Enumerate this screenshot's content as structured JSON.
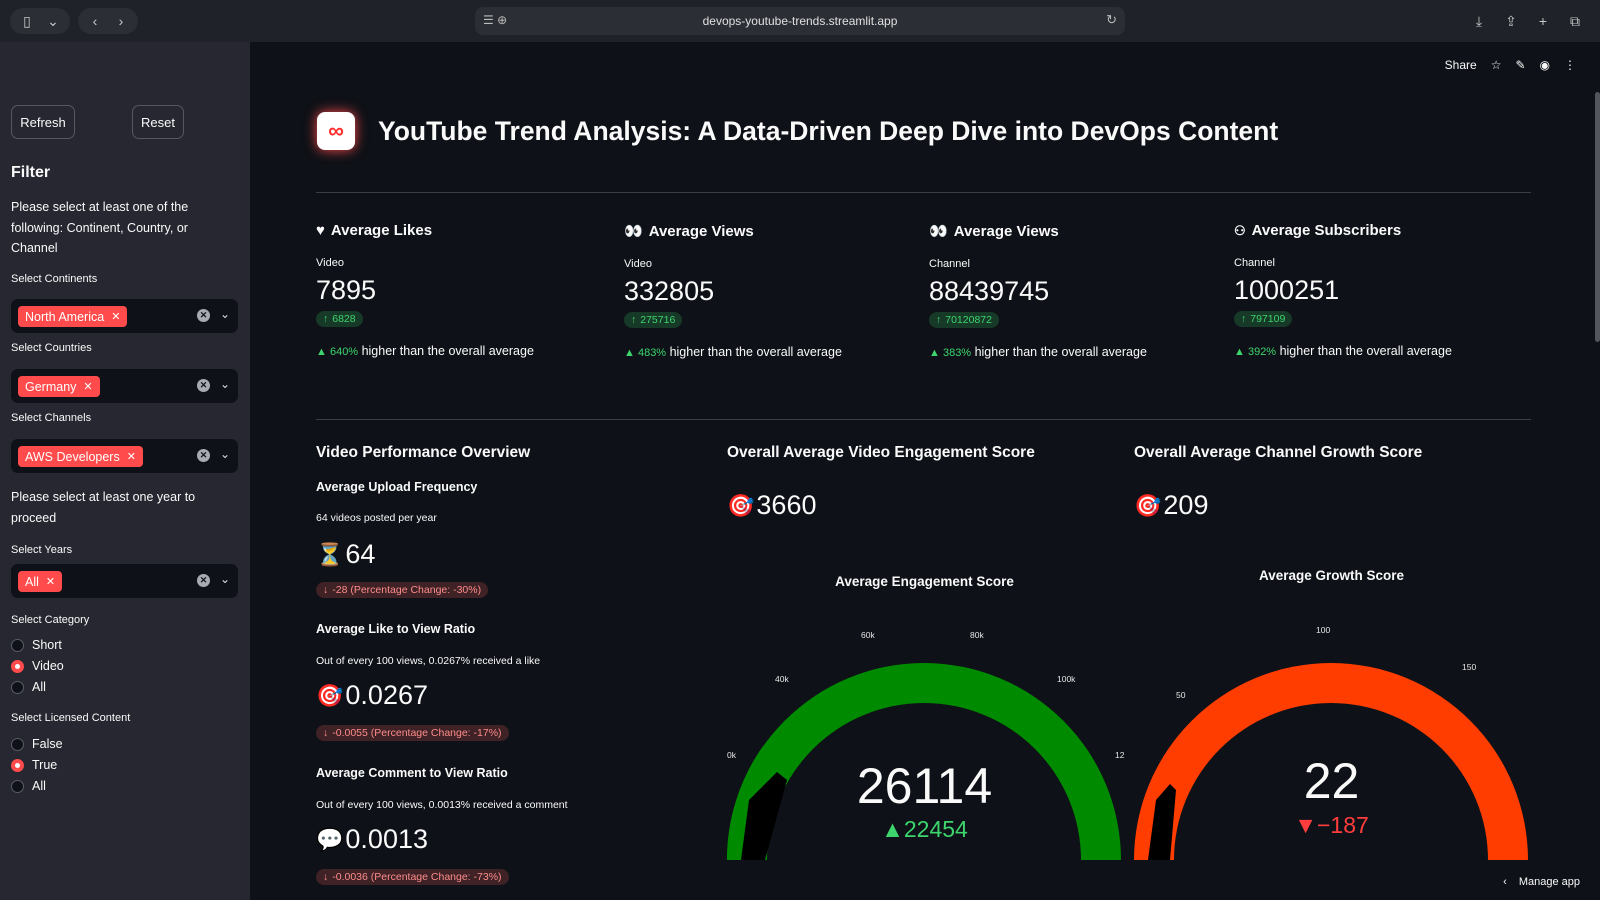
{
  "browser": {
    "url": "devops-youtube-trends.streamlit.app"
  },
  "sidebar": {
    "refresh_label": "Refresh",
    "reset_label": "Reset",
    "filter_title": "Filter",
    "filter_hint": "Please select at least one of the following: Continent, Country, or Channel",
    "continents_label": "Select Continents",
    "continent_chip": "North America",
    "countries_label": "Select Countries",
    "country_chip": "Germany",
    "channels_label": "Select Channels",
    "channel_chip": "AWS Developers",
    "year_hint": "Please select at least one year to proceed",
    "years_label": "Select Years",
    "year_chip": "All",
    "category_label": "Select Category",
    "category_options": [
      "Short",
      "Video",
      "All"
    ],
    "category_selected": "Video",
    "licensed_label": "Select Licensed Content",
    "licensed_options": [
      "False",
      "True",
      "All"
    ],
    "licensed_selected": "True"
  },
  "header": {
    "share": "Share",
    "title": "YouTube Trend Analysis: A Data-Driven Deep Dive into DevOps Content"
  },
  "metrics": [
    {
      "icon": "heart-icon",
      "title": "Average Likes",
      "label": "Video",
      "value": "7895",
      "delta": "6828",
      "pct": "640%",
      "note": " higher than the overall average"
    },
    {
      "icon": "eyes-icon",
      "title": "Average Views",
      "label": "Video",
      "value": "332805",
      "delta": "275716",
      "pct": "483%",
      "note": " higher than the overall average"
    },
    {
      "icon": "eyes-icon",
      "title": "Average Views",
      "label": "Channel",
      "value": "88439745",
      "delta": "70120872",
      "pct": "383%",
      "note": " higher than the overall average"
    },
    {
      "icon": "person-icon",
      "title": "Average Subscribers",
      "label": "Channel",
      "value": "1000251",
      "delta": "797109",
      "pct": "392%",
      "note": " higher than the overall average"
    }
  ],
  "video_performance": {
    "title": "Video Performance Overview",
    "upload": {
      "title": "Average Upload Frequency",
      "desc": "64 videos posted per year",
      "value": "64",
      "delta": "-28 (Percentage Change: -30%)"
    },
    "like_ratio": {
      "title": "Average Like to View Ratio",
      "desc": "Out of every 100 views, 0.0267% received a like",
      "value": "0.0267",
      "delta": "-0.0055 (Percentage Change: -17%)"
    },
    "comment_ratio": {
      "title": "Average Comment to View Ratio",
      "desc": "Out of every 100 views, 0.0013% received a comment",
      "value": "0.0013",
      "delta": "-0.0036 (Percentage Change: -73%)"
    }
  },
  "engagement": {
    "title": "Overall Average Video Engagement Score",
    "value": "3660",
    "gauge_title": "Average Engagement Score",
    "gauge_value": "26114",
    "gauge_delta": "▲22454",
    "ticks": [
      "0k",
      "40k",
      "60k",
      "80k",
      "100k",
      "12"
    ],
    "color": "#008a00"
  },
  "growth": {
    "title": "Overall Average Channel Growth Score",
    "value": "209",
    "gauge_title": "Average Growth Score",
    "gauge_value": "22",
    "gauge_delta": "▼−187",
    "ticks": [
      "50",
      "100",
      "150"
    ],
    "color": "#ff3d00"
  },
  "footer": {
    "manage": "Manage app"
  }
}
